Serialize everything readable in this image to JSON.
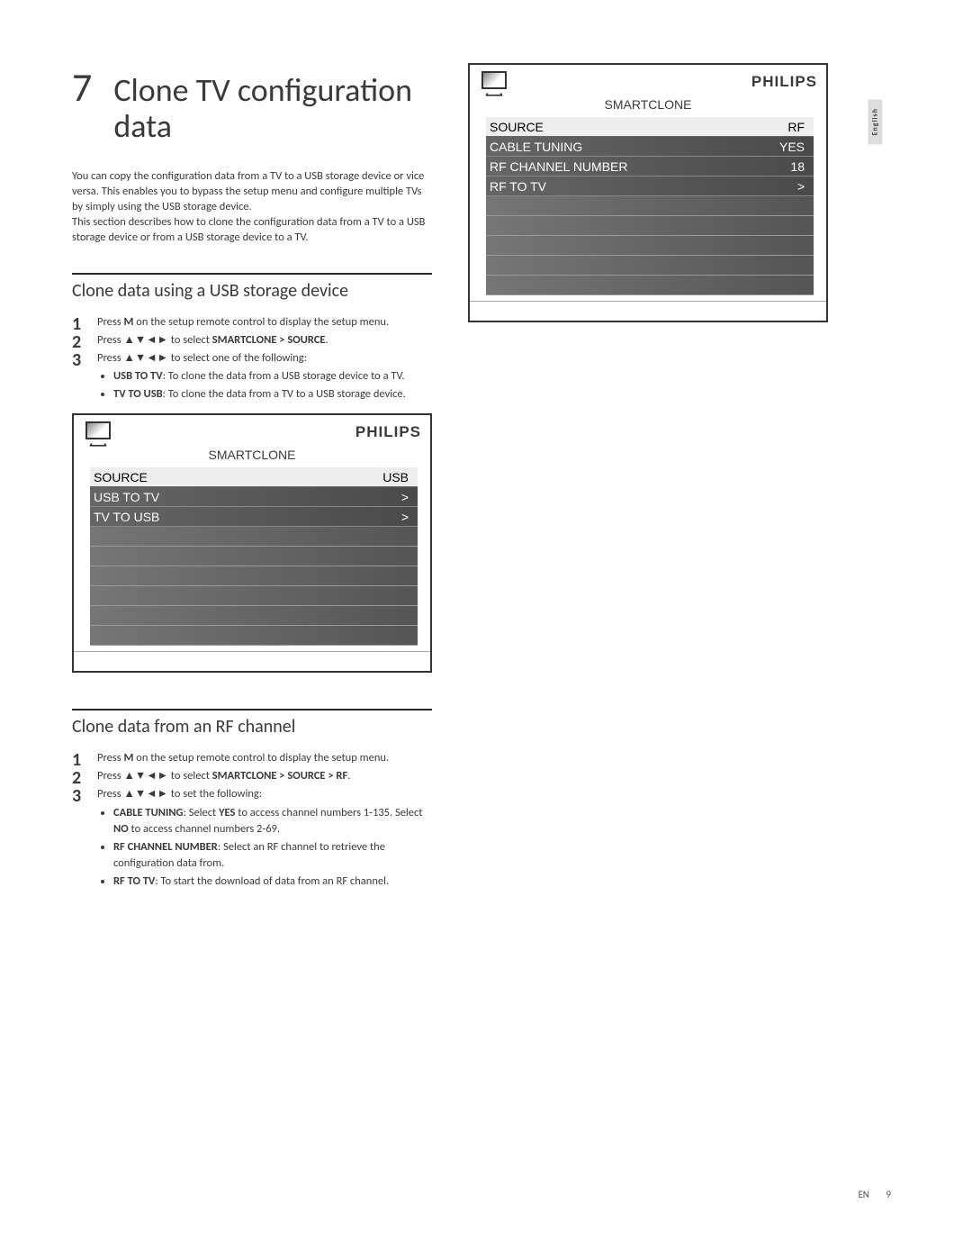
{
  "chapter": {
    "number": "7",
    "title": "Clone TV configuration data"
  },
  "intro_p1": "You can copy the configuration data from a TV to a USB storage device or vice versa. This enables you to bypass the setup menu and configure multiple TVs by simply using the USB storage device.",
  "intro_p2": "This section describes how to clone the configuration data from a TV to a USB storage device or from a USB storage device to a TV.",
  "section_usb": {
    "title": "Clone data using a USB storage device",
    "step1_a": "Press ",
    "step1_key": "M",
    "step1_b": " on the setup remote control to display the setup menu.",
    "step2_a": "Press ▲▼◄► to select ",
    "step2_path": "SMARTCLONE > SOURCE",
    "step2_b": ".",
    "step3_a": "Press ▲▼◄► to select one of the following:",
    "bullet1_key": "USB TO TV",
    "bullet1_text": ": To clone the data from a USB storage device to a TV.",
    "bullet2_key": "TV TO USB",
    "bullet2_text": ": To clone the data from a TV to a USB storage device."
  },
  "section_rf": {
    "title": "Clone data from an RF channel",
    "step1_a": "Press ",
    "step1_key": "M",
    "step1_b": " on the setup remote control to display the setup menu.",
    "step2_a": "Press ▲▼◄► to select ",
    "step2_path": "SMARTCLONE > SOURCE > RF",
    "step2_b": ".",
    "step3_a": "Press ▲▼◄► to set the following:",
    "b1_key": "CABLE TUNING",
    "b1_a": ": Select ",
    "b1_yes": "YES",
    "b1_b": " to access channel numbers 1-135. Select ",
    "b1_no": "NO",
    "b1_c": " to access channel numbers 2-69.",
    "b2_key": "RF CHANNEL NUMBER",
    "b2_text": ": Select an RF channel to retrieve the configuration data from.",
    "b3_key": "RF TO TV",
    "b3_text": ": To start the download of data from an RF channel."
  },
  "menu_usb": {
    "brand": "PHILIPS",
    "title": "SMARTCLONE",
    "rows": [
      {
        "label": "SOURCE",
        "value": "USB",
        "highlight": true
      },
      {
        "label": "USB TO TV",
        "value": ">",
        "dark": true
      },
      {
        "label": "TV TO USB",
        "value": ">",
        "dark": true
      }
    ],
    "empty_rows": 6
  },
  "menu_rf": {
    "brand": "PHILIPS",
    "title": "SMARTCLONE",
    "rows": [
      {
        "label": "SOURCE",
        "value": "RF",
        "highlight": true
      },
      {
        "label": "CABLE TUNING",
        "value": "YES",
        "dark": true
      },
      {
        "label": "RF CHANNEL NUMBER",
        "value": "18",
        "dark": true
      },
      {
        "label": "RF TO TV",
        "value": ">",
        "dark": true
      }
    ],
    "empty_rows": 5
  },
  "lang_tab": "English",
  "footer": {
    "lang": "EN",
    "page": "9"
  },
  "colors": {
    "text": "#3a3a3a",
    "rule": "#2a2a2a",
    "menu_dark_start": "#666666",
    "menu_dark_end": "#4a4a4a",
    "menu_empty_start": "#767676",
    "menu_empty_end": "#555555"
  }
}
